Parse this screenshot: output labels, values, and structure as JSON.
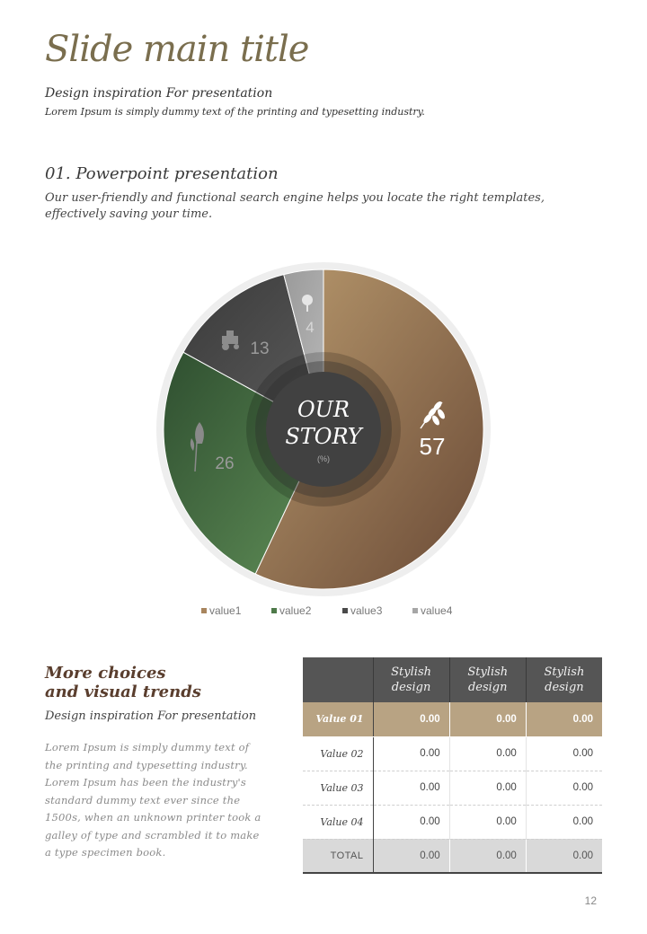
{
  "header": {
    "title": "Slide main title",
    "subtitle": "Design inspiration For presentation",
    "description": "Lorem Ipsum is simply dummy text of the printing and typesetting industry."
  },
  "section1": {
    "heading": "01. Powerpoint presentation",
    "text": "Our user-friendly and functional search engine helps you locate the right templates, effectively saving your time."
  },
  "chart_data": {
    "type": "pie",
    "categories": [
      "value1",
      "value2",
      "value3",
      "value4"
    ],
    "values": [
      57,
      26,
      13,
      4
    ],
    "colors": [
      "#a8855e",
      "#4e7a4a",
      "#4a4a4a",
      "#a6a6a6"
    ],
    "icons": [
      "wheat-icon",
      "leaf-icon",
      "tractor-icon",
      "tree-icon"
    ],
    "center_label_line1": "OUR",
    "center_label_line2": "STORY",
    "center_unit": "(%)",
    "legend_position": "bottom"
  },
  "more": {
    "title_line1": "More choices",
    "title_line2": "and visual trends",
    "subtitle": "Design inspiration For presentation",
    "body": "Lorem Ipsum is simply dummy text of the printing and typesetting industry. Lorem Ipsum has been the industry's standard dummy text ever since the 1500s, when an unknown printer took a galley of type and scrambled it to make a type specimen book."
  },
  "table": {
    "columns": [
      "Stylish design",
      "Stylish design",
      "Stylish design"
    ],
    "rows": [
      {
        "label": "Value 01",
        "cells": [
          "0.00",
          "0.00",
          "0.00"
        ]
      },
      {
        "label": "Value 02",
        "cells": [
          "0.00",
          "0.00",
          "0.00"
        ]
      },
      {
        "label": "Value 03",
        "cells": [
          "0.00",
          "0.00",
          "0.00"
        ]
      },
      {
        "label": "Value 04",
        "cells": [
          "0.00",
          "0.00",
          "0.00"
        ]
      },
      {
        "label": "TOTAL",
        "cells": [
          "0.00",
          "0.00",
          "0.00"
        ]
      }
    ]
  },
  "page_number": "12"
}
